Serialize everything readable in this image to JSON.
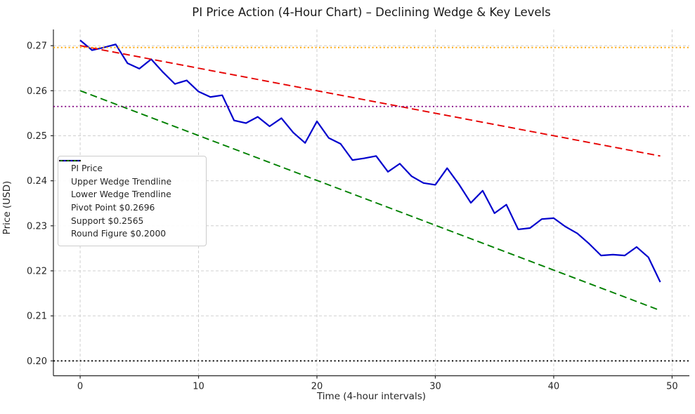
{
  "chart_data": {
    "type": "line",
    "title": "PI Price Action (4-Hour Chart) – Declining Wedge & Key Levels",
    "xlabel": "Time (4-hour intervals)",
    "ylabel": "Price (USD)",
    "xlim": [
      -2.26,
      51.46
    ],
    "ylim": [
      0.1967,
      0.2736
    ],
    "xticks": [
      0,
      10,
      20,
      30,
      40,
      50
    ],
    "xtick_labels": [
      "0",
      "10",
      "20",
      "30",
      "40",
      "50"
    ],
    "yticks": [
      0.2,
      0.21,
      0.22,
      0.23,
      0.24,
      0.25,
      0.26,
      0.27
    ],
    "ytick_labels": [
      "0.20",
      "0.21",
      "0.22",
      "0.23",
      "0.24",
      "0.25",
      "0.26",
      "0.27"
    ],
    "grid": true,
    "grid_color": "#cfcfcf",
    "legend_position": "center-left",
    "series": [
      {
        "name": "PI Price",
        "kind": "line",
        "color": "#0000cd",
        "style": "solid",
        "width": 2.2,
        "x_start": 0,
        "values": [
          0.2712,
          0.269,
          0.2696,
          0.2703,
          0.2661,
          0.2649,
          0.267,
          0.2641,
          0.2615,
          0.2623,
          0.2598,
          0.2586,
          0.259,
          0.2534,
          0.2528,
          0.2542,
          0.2521,
          0.2539,
          0.2507,
          0.2484,
          0.2532,
          0.2495,
          0.2482,
          0.2446,
          0.245,
          0.2455,
          0.242,
          0.2438,
          0.241,
          0.2395,
          0.2391,
          0.2428,
          0.2392,
          0.2351,
          0.2378,
          0.2328,
          0.2347,
          0.2292,
          0.2295,
          0.2315,
          0.2317,
          0.2298,
          0.2283,
          0.226,
          0.2234,
          0.2236,
          0.2234,
          0.2253,
          0.223,
          0.2175
        ]
      },
      {
        "name": "Upper Wedge Trendline",
        "kind": "trend",
        "color": "#e60000",
        "style": "dashed",
        "width": 1.9,
        "x": [
          0,
          49
        ],
        "y": [
          0.27,
          0.2455
        ]
      },
      {
        "name": "Lower Wedge Trendline",
        "kind": "trend",
        "color": "#008000",
        "style": "dashed",
        "width": 1.9,
        "x": [
          0,
          49
        ],
        "y": [
          0.26,
          0.2112
        ]
      },
      {
        "name": "Pivot Point $0.2696",
        "kind": "hline",
        "color": "#ffa500",
        "style": "dotted",
        "width": 1.8,
        "y": 0.2696
      },
      {
        "name": "Support $0.2565",
        "kind": "hline",
        "color": "#800080",
        "style": "dotted",
        "width": 1.8,
        "y": 0.2565
      },
      {
        "name": "Round Figure $0.2000",
        "kind": "hline",
        "color": "#000000",
        "style": "dotted",
        "width": 1.8,
        "y": 0.2
      }
    ]
  }
}
